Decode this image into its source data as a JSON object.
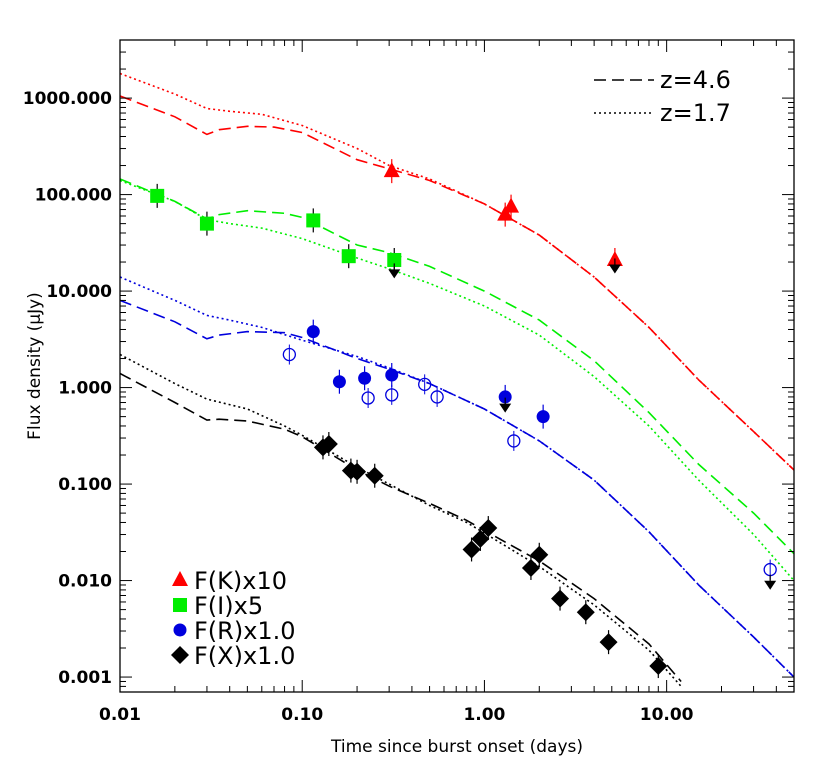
{
  "chart_data": {
    "type": "scatter",
    "title": "",
    "xlabel": "Time since burst onset (days)",
    "ylabel": "Flux density (μJy)",
    "x_scale": "log",
    "y_scale": "log",
    "xlim": [
      0.01,
      50
    ],
    "ylim": [
      0.0007,
      4000
    ],
    "x_ticks": [
      {
        "value": 0.01,
        "label": "0.01"
      },
      {
        "value": 0.1,
        "label": "0.10"
      },
      {
        "value": 1,
        "label": "1.00"
      },
      {
        "value": 10,
        "label": "10.00"
      }
    ],
    "y_ticks": [
      {
        "value": 0.001,
        "label": "0.001"
      },
      {
        "value": 0.01,
        "label": "0.010"
      },
      {
        "value": 0.1,
        "label": "0.100"
      },
      {
        "value": 1,
        "label": "1.000"
      },
      {
        "value": 10,
        "label": "10.000"
      },
      {
        "value": 100,
        "label": "100.000"
      },
      {
        "value": 1000,
        "label": "1000.000"
      }
    ],
    "grid": false,
    "model_legend": {
      "position": "top-right",
      "entries": [
        {
          "label": "z=4.6",
          "style": "dashed"
        },
        {
          "label": "z=1.7",
          "style": "dotted"
        }
      ]
    },
    "series_legend": {
      "position": "bottom-left",
      "entries": [
        {
          "label": "F(K)x10",
          "color": "#ff0000",
          "marker": "triangle"
        },
        {
          "label": "F(I)x5",
          "color": "#00ee00",
          "marker": "square"
        },
        {
          "label": "F(R)x1.0",
          "color": "#0000dd",
          "marker": "circle"
        },
        {
          "label": "F(X)x1.0",
          "color": "#000000",
          "marker": "diamond"
        }
      ]
    },
    "series": [
      {
        "name": "F(K)x10",
        "color": "#ff0000",
        "marker": "triangle",
        "points": [
          {
            "x": 0.31,
            "y": 175
          },
          {
            "x": 1.3,
            "y": 62
          },
          {
            "x": 1.4,
            "y": 75
          },
          {
            "x": 5.2,
            "y": 21
          }
        ],
        "upper_limits": [
          {
            "x": 5.2,
            "y": 18
          }
        ],
        "models": [
          {
            "style": "dashed",
            "points": [
              [
                0.01,
                1050
              ],
              [
                0.02,
                640
              ],
              [
                0.03,
                420
              ],
              [
                0.035,
                470
              ],
              [
                0.05,
                510
              ],
              [
                0.07,
                500
              ],
              [
                0.1,
                440
              ],
              [
                0.2,
                230
              ],
              [
                0.3,
                185
              ],
              [
                0.5,
                140
              ],
              [
                1,
                80
              ],
              [
                2,
                38
              ],
              [
                4,
                14
              ],
              [
                8,
                4.2
              ],
              [
                15,
                1.2
              ],
              [
                30,
                0.35
              ],
              [
                50,
                0.14
              ]
            ]
          },
          {
            "style": "dotted",
            "points": [
              [
                0.01,
                1800
              ],
              [
                0.02,
                1100
              ],
              [
                0.03,
                780
              ],
              [
                0.04,
                730
              ],
              [
                0.06,
                680
              ],
              [
                0.1,
                520
              ],
              [
                0.2,
                300
              ],
              [
                0.3,
                200
              ],
              [
                0.5,
                145
              ],
              [
                1,
                80
              ],
              [
                2,
                38
              ],
              [
                4,
                14
              ],
              [
                8,
                4.2
              ],
              [
                15,
                1.2
              ],
              [
                30,
                0.35
              ],
              [
                50,
                0.14
              ]
            ]
          }
        ]
      },
      {
        "name": "F(I)x5",
        "color": "#00ee00",
        "marker": "square",
        "points": [
          {
            "x": 0.016,
            "y": 97
          },
          {
            "x": 0.03,
            "y": 50
          },
          {
            "x": 0.115,
            "y": 54
          },
          {
            "x": 0.18,
            "y": 23
          },
          {
            "x": 0.32,
            "y": 21
          }
        ],
        "upper_limits": [
          {
            "x": 0.32,
            "y": 16
          }
        ],
        "models": [
          {
            "style": "dashed",
            "points": [
              [
                0.01,
                145
              ],
              [
                0.02,
                85
              ],
              [
                0.03,
                56
              ],
              [
                0.035,
                62
              ],
              [
                0.05,
                68
              ],
              [
                0.08,
                64
              ],
              [
                0.1,
                58
              ],
              [
                0.2,
                30
              ],
              [
                0.3,
                25
              ],
              [
                0.5,
                18
              ],
              [
                1,
                10
              ],
              [
                2,
                5
              ],
              [
                4,
                1.9
              ],
              [
                8,
                0.55
              ],
              [
                15,
                0.16
              ],
              [
                30,
                0.05
              ],
              [
                50,
                0.019
              ]
            ]
          },
          {
            "style": "dotted",
            "points": [
              [
                0.01,
                140
              ],
              [
                0.02,
                85
              ],
              [
                0.03,
                55
              ],
              [
                0.04,
                50
              ],
              [
                0.06,
                45
              ],
              [
                0.1,
                35
              ],
              [
                0.2,
                22
              ],
              [
                0.3,
                17
              ],
              [
                0.5,
                12
              ],
              [
                1,
                7
              ],
              [
                2,
                3.5
              ],
              [
                4,
                1.3
              ],
              [
                8,
                0.4
              ],
              [
                15,
                0.11
              ],
              [
                30,
                0.03
              ],
              [
                50,
                0.01
              ]
            ]
          }
        ]
      },
      {
        "name": "F(R)x1.0",
        "color": "#0000dd",
        "marker": "circle",
        "points": [
          {
            "x": 0.115,
            "y": 3.8
          },
          {
            "x": 0.16,
            "y": 1.15
          },
          {
            "x": 0.22,
            "y": 1.25
          },
          {
            "x": 0.31,
            "y": 1.35
          },
          {
            "x": 1.3,
            "y": 0.8
          },
          {
            "x": 2.1,
            "y": 0.5
          }
        ],
        "open_points": [
          {
            "x": 0.085,
            "y": 2.2
          },
          {
            "x": 0.23,
            "y": 0.78
          },
          {
            "x": 0.31,
            "y": 0.84
          },
          {
            "x": 0.47,
            "y": 1.08
          },
          {
            "x": 0.55,
            "y": 0.8
          },
          {
            "x": 1.45,
            "y": 0.28
          },
          {
            "x": 37,
            "y": 0.013
          }
        ],
        "upper_limits": [
          {
            "x": 1.3,
            "y": 0.65
          },
          {
            "x": 37,
            "y": 0.0095
          }
        ],
        "models": [
          {
            "style": "dashed",
            "points": [
              [
                0.01,
                8
              ],
              [
                0.02,
                4.8
              ],
              [
                0.03,
                3.2
              ],
              [
                0.035,
                3.5
              ],
              [
                0.05,
                3.8
              ],
              [
                0.08,
                3.7
              ],
              [
                0.1,
                3.3
              ],
              [
                0.2,
                2
              ],
              [
                0.3,
                1.55
              ],
              [
                0.5,
                1.1
              ],
              [
                1,
                0.6
              ],
              [
                2,
                0.28
              ],
              [
                4,
                0.11
              ],
              [
                8,
                0.032
              ],
              [
                15,
                0.009
              ],
              [
                30,
                0.0026
              ],
              [
                50,
                0.001
              ]
            ]
          },
          {
            "style": "dotted",
            "points": [
              [
                0.01,
                14
              ],
              [
                0.02,
                8
              ],
              [
                0.03,
                5.6
              ],
              [
                0.04,
                5
              ],
              [
                0.06,
                4.2
              ],
              [
                0.1,
                3.1
              ],
              [
                0.2,
                2.1
              ],
              [
                0.3,
                1.6
              ],
              [
                0.5,
                1.1
              ],
              [
                1,
                0.6
              ],
              [
                2,
                0.28
              ],
              [
                4,
                0.11
              ],
              [
                8,
                0.032
              ],
              [
                15,
                0.009
              ],
              [
                30,
                0.0026
              ],
              [
                50,
                0.001
              ]
            ]
          }
        ]
      },
      {
        "name": "F(X)x1.0",
        "color": "#000000",
        "marker": "diamond",
        "points": [
          {
            "x": 0.13,
            "y": 0.24
          },
          {
            "x": 0.14,
            "y": 0.26
          },
          {
            "x": 0.185,
            "y": 0.138
          },
          {
            "x": 0.2,
            "y": 0.134
          },
          {
            "x": 0.25,
            "y": 0.122
          },
          {
            "x": 0.85,
            "y": 0.021
          },
          {
            "x": 0.95,
            "y": 0.027
          },
          {
            "x": 1.05,
            "y": 0.035
          },
          {
            "x": 1.8,
            "y": 0.0135
          },
          {
            "x": 2.0,
            "y": 0.0185
          },
          {
            "x": 2.6,
            "y": 0.0065
          },
          {
            "x": 3.6,
            "y": 0.0047
          },
          {
            "x": 4.8,
            "y": 0.0023
          },
          {
            "x": 9.0,
            "y": 0.0013
          }
        ],
        "upper_limits": [],
        "models": [
          {
            "style": "dashed",
            "points": [
              [
                0.01,
                1.4
              ],
              [
                0.02,
                0.7
              ],
              [
                0.03,
                0.46
              ],
              [
                0.035,
                0.47
              ],
              [
                0.05,
                0.45
              ],
              [
                0.08,
                0.37
              ],
              [
                0.1,
                0.31
              ],
              [
                0.2,
                0.14
              ],
              [
                0.3,
                0.095
              ],
              [
                0.5,
                0.063
              ],
              [
                0.8,
                0.042
              ],
              [
                1,
                0.033
              ],
              [
                2,
                0.016
              ],
              [
                4,
                0.0065
              ],
              [
                8,
                0.0022
              ],
              [
                12,
                0.0009
              ]
            ]
          },
          {
            "style": "dotted",
            "points": [
              [
                0.01,
                2.2
              ],
              [
                0.02,
                1.1
              ],
              [
                0.03,
                0.76
              ],
              [
                0.05,
                0.6
              ],
              [
                0.08,
                0.4
              ],
              [
                0.1,
                0.32
              ],
              [
                0.2,
                0.15
              ],
              [
                0.3,
                0.1
              ],
              [
                0.5,
                0.06
              ],
              [
                0.8,
                0.04
              ],
              [
                1,
                0.031
              ],
              [
                2,
                0.014
              ],
              [
                4,
                0.0056
              ],
              [
                8,
                0.0019
              ],
              [
                12,
                0.0008
              ]
            ]
          }
        ]
      }
    ]
  }
}
